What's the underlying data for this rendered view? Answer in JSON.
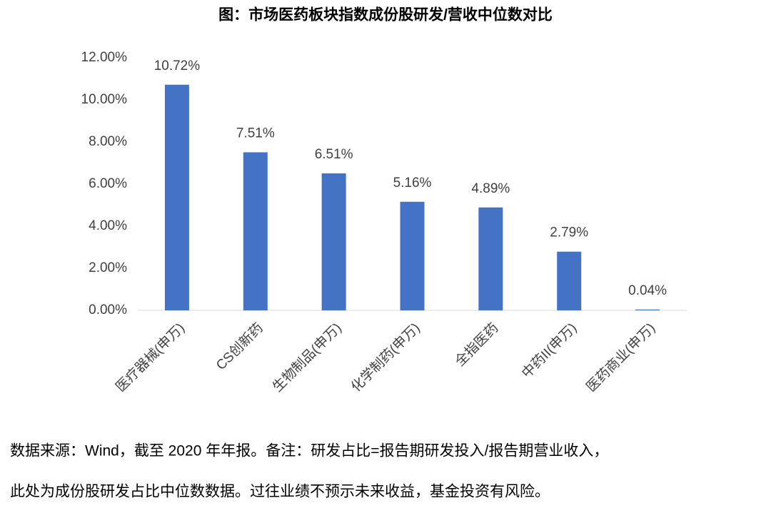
{
  "chart_data": {
    "type": "bar",
    "title": "图：市场医药板块指数成份股研发/营收中位数对比",
    "categories": [
      "医疗器械(申万)",
      "CS创新药",
      "生物制品(申万)",
      "化学制药(申万)",
      "全指医药",
      "中药II(申万)",
      "医药商业(申万)"
    ],
    "values": [
      10.72,
      7.51,
      6.51,
      5.16,
      4.89,
      2.79,
      0.04
    ],
    "value_labels": [
      "10.72%",
      "7.51%",
      "6.51%",
      "5.16%",
      "4.89%",
      "2.79%",
      "0.04%"
    ],
    "color": "#4472c4",
    "ylim": [
      0,
      12
    ],
    "yticks": [
      {
        "value": 0,
        "label": "0.00%"
      },
      {
        "value": 2,
        "label": "2.00%"
      },
      {
        "value": 4,
        "label": "4.00%"
      },
      {
        "value": 6,
        "label": "6.00%"
      },
      {
        "value": 8,
        "label": "8.00%"
      },
      {
        "value": 10,
        "label": "10.00%"
      },
      {
        "value": 12,
        "label": "12.00%"
      }
    ],
    "grid": false,
    "notes": [
      "数据来源：Wind，截至 2020 年年报。备注：研发占比=报告期研发投入/报告期营业收入，",
      "此处为成份股研发占比中位数数据。过往业绩不预示未来收益，基金投资有风险。"
    ]
  }
}
